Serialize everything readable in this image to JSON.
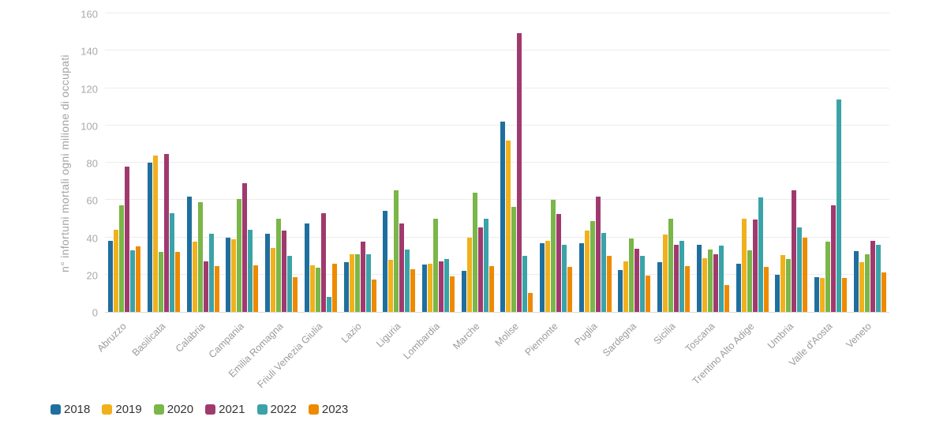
{
  "chart_data": {
    "type": "bar",
    "title": "",
    "ylabel": "n° infortuni mortali ogni milione di occupati",
    "xlabel": "",
    "ylim": [
      0,
      160
    ],
    "yticks": [
      0,
      20,
      40,
      60,
      80,
      100,
      120,
      140,
      160
    ],
    "grid": true,
    "legend_position": "bottom-left",
    "categories": [
      "Abruzzo",
      "Basilicata",
      "Calabria",
      "Campania",
      "Emilia Romagna",
      "Friuli Venezia Giulia",
      "Lazio",
      "Liguria",
      "Lombardia",
      "Marche",
      "Molise",
      "Piemonte",
      "Puglia",
      "Sardegna",
      "Sicilia",
      "Toscana",
      "Trentino Alto Adige",
      "Umbria",
      "Valle d'Aosta",
      "Veneto"
    ],
    "series": [
      {
        "name": "2018",
        "color": "#1f6f9e",
        "values": [
          38,
          80,
          62,
          40,
          42,
          47.5,
          26.5,
          54,
          25.5,
          22,
          102,
          37,
          37,
          22.5,
          26.5,
          36,
          26,
          20,
          18.5,
          32.5
        ]
      },
      {
        "name": "2019",
        "color": "#f0b11d",
        "values": [
          44,
          84,
          37.5,
          39,
          34.5,
          25,
          31,
          28,
          26,
          40,
          92,
          38,
          43.5,
          27,
          41.5,
          29,
          50,
          30.5,
          18,
          26.5
        ]
      },
      {
        "name": "2020",
        "color": "#7ab648",
        "values": [
          57,
          32,
          59,
          60.5,
          50,
          23.5,
          31,
          65,
          50,
          64,
          56.5,
          60,
          48.5,
          39.5,
          50,
          33.5,
          33,
          28.5,
          37.5,
          31
        ]
      },
      {
        "name": "2021",
        "color": "#a03a6e",
        "values": [
          78,
          84.5,
          27,
          69,
          43.5,
          53,
          37.5,
          47.5,
          27,
          45.5,
          149.5,
          52.5,
          62,
          34,
          36,
          31,
          49.5,
          65,
          57,
          38
        ]
      },
      {
        "name": "2022",
        "color": "#3aa3a8",
        "values": [
          33,
          53,
          42,
          44,
          30,
          8,
          31,
          33.5,
          28.5,
          50,
          30,
          36,
          42.5,
          30,
          38,
          35.5,
          61.5,
          45.5,
          114,
          36
        ]
      },
      {
        "name": "2023",
        "color": "#ee8a00",
        "values": [
          35,
          32,
          24.5,
          25,
          18.5,
          26,
          17.5,
          23,
          19,
          24.5,
          10,
          24,
          30,
          19.5,
          24.5,
          14.5,
          24,
          40,
          18,
          21
        ]
      }
    ]
  }
}
